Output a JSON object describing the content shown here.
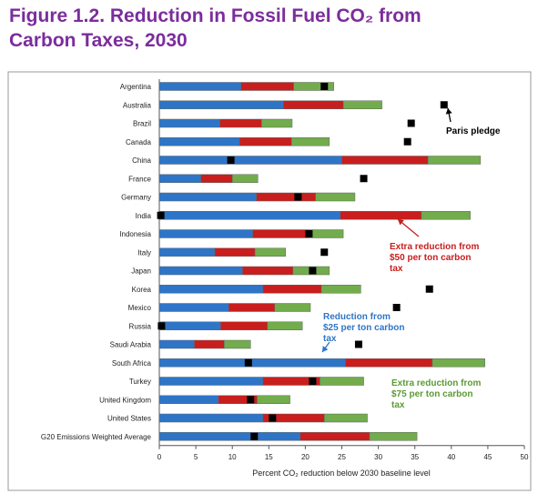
{
  "figure": {
    "title_line1": "Figure 1.2. Reduction in Fossil Fuel CO₂ from",
    "title_line2": "Carbon Taxes, 2030"
  },
  "chart_data": {
    "type": "bar",
    "stacked": true,
    "orientation": "horizontal",
    "xlabel": "Percent CO₂ reduction below 2030 baseline level",
    "xlim": [
      0,
      50
    ],
    "xticks": [
      0,
      5,
      10,
      15,
      20,
      25,
      30,
      35,
      40,
      45,
      50
    ],
    "grid": false,
    "categories": [
      "Argentina",
      "Australia",
      "Brazil",
      "Canada",
      "China",
      "France",
      "Germany",
      "India",
      "Indonesia",
      "Italy",
      "Japan",
      "Korea",
      "Mexico",
      "Russia",
      "Saudi Arabia",
      "South Africa",
      "Turkey",
      "United Kingdom",
      "United States",
      "G20 Emissions Weighted Average"
    ],
    "series": [
      {
        "name": "$25 per ton carbon tax",
        "color": "#2e75c8",
        "values": [
          11.2,
          17.0,
          8.3,
          11.0,
          25.0,
          5.7,
          13.3,
          24.8,
          12.8,
          7.6,
          11.4,
          14.2,
          9.5,
          8.4,
          4.8,
          25.5,
          14.2,
          8.1,
          14.2,
          19.3
        ]
      },
      {
        "name": "Extra reduction from $50 per ton carbon tax",
        "color": "#c81e1e",
        "values": [
          7.2,
          8.2,
          5.7,
          7.1,
          11.8,
          4.3,
          8.1,
          11.1,
          7.7,
          5.5,
          6.9,
          8.0,
          6.3,
          6.4,
          4.1,
          11.9,
          7.8,
          5.3,
          8.4,
          9.5
        ]
      },
      {
        "name": "Extra reduction from $75 per ton carbon tax",
        "color": "#72ac4d",
        "values": [
          5.5,
          5.3,
          4.2,
          5.2,
          7.2,
          3.5,
          5.4,
          6.7,
          4.7,
          4.2,
          5.0,
          5.4,
          4.9,
          4.8,
          3.6,
          7.2,
          6.0,
          4.5,
          5.9,
          6.5
        ]
      }
    ],
    "pledge_series": {
      "name": "Paris pledge",
      "color": "#000000",
      "values": [
        22.6,
        39.0,
        34.5,
        34.0,
        9.8,
        28.0,
        19.0,
        0.2,
        20.5,
        22.6,
        21.0,
        37.0,
        32.5,
        0.3,
        27.3,
        12.2,
        21.0,
        12.5,
        15.5,
        13.0
      ]
    },
    "annotations": [
      {
        "text": [
          "Paris pledge"
        ],
        "color": "#000000"
      },
      {
        "text": [
          "Extra reduction from",
          "$50 per ton carbon",
          "tax"
        ],
        "color": "#c81e1e"
      },
      {
        "text": [
          "Reduction from",
          "$25 per ton carbon",
          "tax"
        ],
        "color": "#2e75c8"
      },
      {
        "text": [
          "Extra reduction from",
          "$75 per ton carbon",
          "tax"
        ],
        "color": "#5b9a35"
      }
    ]
  }
}
